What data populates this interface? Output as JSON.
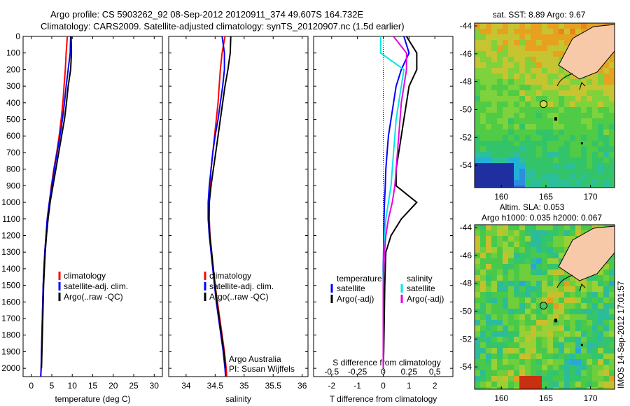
{
  "header": {
    "line1": "Argo profile: CS 5903262_92 08-Sep-2012 20120911_374 49.607S 164.732E",
    "line2": "Climatology: CARS2009. Satellite-adjusted climatology: synTS_20120907.nc (1.5d earlier)"
  },
  "colors": {
    "climatology": "#ff0000",
    "satellite": "#0000ff",
    "argo": "#000000",
    "salinity_satellite": "#00e6e6",
    "salinity_argo": "#e600e6",
    "land": "#f7c9a8"
  },
  "chart_data": [
    {
      "type": "line",
      "name": "temperature-profile",
      "xlabel": "temperature (deg C)",
      "xlim": [
        -2,
        32
      ],
      "xticks": [
        0,
        5,
        10,
        15,
        20,
        25,
        30
      ],
      "xtick_labels": [
        "0",
        "5",
        "10",
        "15",
        "20",
        "25",
        "30"
      ],
      "ylim": [
        0,
        2050
      ],
      "yticks": [
        0,
        100,
        200,
        300,
        400,
        500,
        600,
        700,
        800,
        900,
        1000,
        1100,
        1200,
        1300,
        1400,
        1500,
        1600,
        1700,
        1800,
        1900,
        2000
      ],
      "ytick_labels": [
        "0",
        "100",
        "200",
        "300",
        "400",
        "500",
        "600",
        "700",
        "800",
        "900",
        "1000",
        "1100",
        "1200",
        "1300",
        "1400",
        "1500",
        "1600",
        "1700",
        "1800",
        "1900",
        "2000"
      ],
      "legend": [
        "climatology",
        "satellite-adj. clim.",
        "Argo(..raw -QC)"
      ],
      "series": [
        {
          "name": "climatology",
          "x": [
            8.8,
            8.5,
            8.3,
            8.0,
            7.7,
            7.3,
            6.8,
            6.2,
            5.5,
            4.9,
            4.4,
            3.9,
            3.6,
            3.3,
            3.1,
            2.9,
            2.8,
            2.7,
            2.6,
            2.5,
            2.4,
            2.3
          ],
          "y": [
            0,
            100,
            200,
            300,
            400,
            500,
            600,
            700,
            800,
            900,
            1000,
            1100,
            1200,
            1300,
            1400,
            1500,
            1600,
            1700,
            1800,
            1900,
            2000,
            2050
          ]
        },
        {
          "name": "satellite-adj. clim.",
          "x": [
            9.6,
            9.5,
            9.0,
            8.5,
            8.1,
            7.6,
            7.0,
            6.3,
            5.6,
            5.0,
            4.4,
            3.9,
            3.6,
            3.3,
            3.1,
            2.9,
            2.8,
            2.7,
            2.6,
            2.5,
            2.4,
            2.3
          ],
          "y": [
            0,
            100,
            200,
            300,
            400,
            500,
            600,
            700,
            800,
            900,
            1000,
            1100,
            1200,
            1300,
            1400,
            1500,
            1600,
            1700,
            1800,
            1900,
            2000,
            2050
          ]
        },
        {
          "name": "Argo(..raw -QC)",
          "x": [
            9.7,
            9.8,
            9.6,
            9.0,
            8.6,
            8.1,
            7.4,
            6.7,
            6.0,
            5.3,
            4.6,
            4.1,
            3.7,
            3.4,
            3.2,
            3.0,
            2.9,
            2.8,
            2.7,
            2.6,
            2.5
          ],
          "y": [
            0,
            100,
            200,
            300,
            400,
            500,
            600,
            700,
            800,
            900,
            1000,
            1100,
            1200,
            1300,
            1400,
            1500,
            1600,
            1700,
            1800,
            1900,
            2000
          ]
        }
      ]
    },
    {
      "type": "line",
      "name": "salinity-profile",
      "xlabel": "salinity",
      "xlim": [
        33.7,
        36.1
      ],
      "xticks": [
        34,
        34.5,
        35,
        35.5,
        36
      ],
      "xtick_labels": [
        "34",
        "34.5",
        "35",
        "35.5",
        "36"
      ],
      "ylim": [
        0,
        2050
      ],
      "legend": [
        "climatology",
        "satellite-adj. clim.",
        "Argo(..raw -QC)"
      ],
      "annotation": [
        "Argo Australia",
        "PI: Susan Wijffels"
      ],
      "series": [
        {
          "name": "climatology",
          "x": [
            34.67,
            34.62,
            34.59,
            34.57,
            34.55,
            34.52,
            34.49,
            34.46,
            34.43,
            34.41,
            34.4,
            34.4,
            34.41,
            34.43,
            34.46,
            34.5,
            34.54,
            34.58,
            34.62,
            34.66,
            34.69,
            34.7
          ],
          "y": [
            0,
            100,
            200,
            300,
            400,
            500,
            600,
            700,
            800,
            900,
            1000,
            1100,
            1200,
            1300,
            1400,
            1500,
            1600,
            1700,
            1800,
            1900,
            2000,
            2050
          ]
        },
        {
          "name": "satellite-adj. clim.",
          "x": [
            34.62,
            34.66,
            34.66,
            34.63,
            34.59,
            34.55,
            34.5,
            34.46,
            34.43,
            34.4,
            34.38,
            34.38,
            34.4,
            34.43,
            34.46,
            34.49,
            34.52,
            34.56,
            34.6,
            34.64,
            34.67,
            34.68
          ],
          "y": [
            0,
            100,
            200,
            300,
            400,
            500,
            600,
            700,
            800,
            900,
            1000,
            1100,
            1200,
            1300,
            1400,
            1500,
            1600,
            1700,
            1800,
            1900,
            2000,
            2050
          ]
        },
        {
          "name": "Argo(..raw -QC)",
          "x": [
            34.77,
            34.76,
            34.72,
            34.67,
            34.63,
            34.59,
            34.55,
            34.51,
            34.47,
            34.43,
            34.4,
            34.39,
            34.41,
            34.44,
            34.47,
            34.5,
            34.53,
            34.57,
            34.61,
            34.65,
            34.68
          ],
          "y": [
            0,
            100,
            200,
            300,
            400,
            500,
            600,
            700,
            800,
            900,
            1000,
            1100,
            1200,
            1300,
            1400,
            1500,
            1600,
            1700,
            1800,
            1900,
            2000
          ]
        }
      ]
    },
    {
      "type": "line",
      "name": "difference-profile",
      "xlabel": "T difference from climatology",
      "xlabel_top": "S difference from climatology",
      "xlim": [
        -2.7,
        2.7
      ],
      "xticks": [
        -2,
        -1,
        0,
        1,
        2
      ],
      "xtick_labels": [
        "-2",
        "-1",
        "0",
        "1",
        "2"
      ],
      "xticks_s": [
        -0.5,
        -0.25,
        0,
        0.25,
        0.5
      ],
      "xtick_labels_s": [
        "-0.5",
        "-0.25",
        "0",
        "0.25",
        "0.5"
      ],
      "ylim": [
        0,
        2050
      ],
      "legend_temperature": [
        "temperature",
        "satellite",
        "Argo(-adj)"
      ],
      "legend_salinity": [
        "salinity",
        "satellite",
        "Argo(-adj)"
      ],
      "series": [
        {
          "name": "satellite",
          "x": [
            0.8,
            1.0,
            0.7,
            0.5,
            0.4,
            0.3,
            0.2,
            0.15,
            0.1,
            0.08,
            0.05,
            0.03,
            0.02,
            0.01,
            0.0,
            0.0,
            0.0,
            0.0,
            0.0,
            0.0,
            0.0
          ],
          "y": [
            0,
            100,
            200,
            300,
            400,
            500,
            600,
            700,
            800,
            900,
            1000,
            1100,
            1200,
            1300,
            1400,
            1500,
            1600,
            1700,
            1800,
            1900,
            2000
          ]
        },
        {
          "name": "Argo(-adj)",
          "x": [
            0.9,
            1.3,
            1.3,
            1.0,
            0.9,
            0.8,
            0.7,
            0.6,
            0.5,
            0.5,
            1.3,
            0.7,
            0.3,
            0.1,
            0.08,
            0.06,
            0.05,
            0.04,
            0.03,
            0.02,
            0.0
          ],
          "y": [
            0,
            100,
            200,
            300,
            400,
            500,
            600,
            700,
            800,
            900,
            1000,
            1100,
            1200,
            1300,
            1400,
            1500,
            1600,
            1700,
            1800,
            1900,
            2000
          ]
        },
        {
          "name": "satellite",
          "x": [
            -0.1,
            -0.1,
            0.8,
            0.7,
            0.6,
            0.5,
            0.45,
            0.4,
            0.35,
            0.3,
            0.2,
            0.1,
            0.05,
            0.03,
            0.01,
            0.0,
            0.0,
            0.0,
            0.0,
            0.0,
            0.0
          ],
          "y": [
            0,
            100,
            200,
            300,
            400,
            500,
            600,
            700,
            800,
            900,
            1000,
            1100,
            1200,
            1300,
            1400,
            1500,
            1600,
            1700,
            1800,
            1900,
            2000
          ]
        },
        {
          "name": "Argo(-adj)",
          "x": [
            0.4,
            0.9,
            0.9,
            0.8,
            0.7,
            0.65,
            0.6,
            0.55,
            0.5,
            0.45,
            0.35,
            0.2,
            0.1,
            0.05,
            0.02,
            0.0,
            0.0,
            0.0,
            0.0,
            0.0,
            0.0
          ],
          "y": [
            0,
            100,
            200,
            300,
            400,
            500,
            600,
            700,
            800,
            900,
            1000,
            1100,
            1200,
            1300,
            1400,
            1500,
            1600,
            1700,
            1800,
            1900,
            2000
          ]
        }
      ]
    },
    {
      "type": "heatmap",
      "name": "sst-map",
      "title": "sat. SST: 8.89  Argo: 9.67",
      "xlim": [
        157,
        172.7
      ],
      "ylim": [
        -55.6,
        -43.8
      ],
      "xticks": [
        160,
        165,
        170
      ],
      "xtick_labels": [
        "160",
        "165",
        "170"
      ],
      "yticks": [
        -44,
        -46,
        -48,
        -50,
        -52,
        -54
      ],
      "ytick_labels": [
        "-44",
        "-46",
        "-48",
        "-50",
        "-52",
        "-54"
      ],
      "marker": {
        "lon": 164.732,
        "lat": -49.607
      }
    },
    {
      "type": "heatmap",
      "name": "sla-map",
      "title": "Altim. SLA: 0.053",
      "subtitle": "Argo h1000: 0.035 h2000: 0.067",
      "xlim": [
        157,
        172.7
      ],
      "ylim": [
        -55.6,
        -43.8
      ],
      "xticks": [
        160,
        165,
        170
      ],
      "xtick_labels": [
        "160",
        "165",
        "170"
      ],
      "yticks": [
        -44,
        -46,
        -48,
        -50,
        -52,
        -54
      ],
      "ytick_labels": [
        "-44",
        "-46",
        "-48",
        "-50",
        "-52",
        "-54"
      ],
      "marker": {
        "lon": 164.732,
        "lat": -49.607
      }
    }
  ],
  "side_label": "IMOS 14-Sep-2012 17:01:57"
}
